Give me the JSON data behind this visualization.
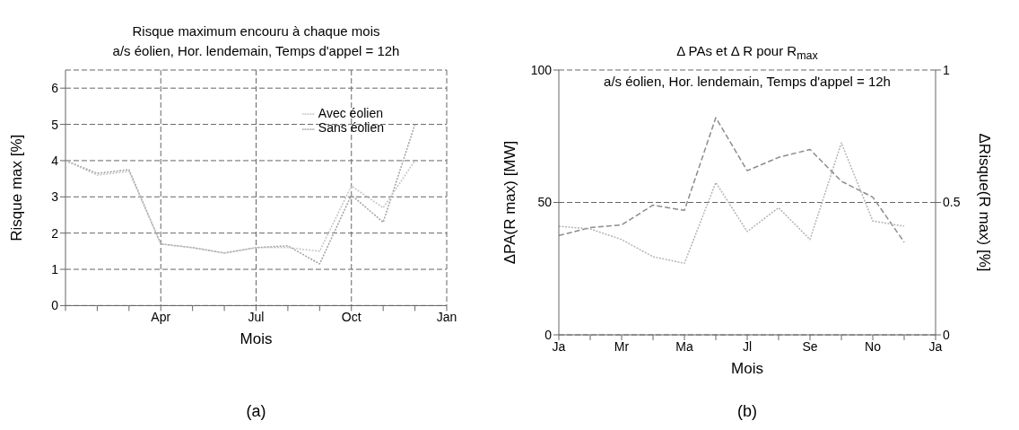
{
  "chart_data": [
    {
      "type": "line",
      "title": "Risque maximum encouru à chaque mois",
      "subtitle": "a/s éolien, Hor. lendemain, Temps d'appel = 12h",
      "xlabel": "Mois",
      "ylabel": "Risque max [%]",
      "annotations": [
        "(a)"
      ],
      "categories": [
        null,
        null,
        null,
        "Apr",
        null,
        null,
        "Jul",
        null,
        null,
        "Oct",
        null,
        null,
        "Jan"
      ],
      "series": [
        {
          "name": "Sans éolien",
          "color": "#a0a0a0",
          "line_style": "dotted",
          "values": [
            4.0,
            3.65,
            3.75,
            1.7,
            1.6,
            1.45,
            1.6,
            1.65,
            1.15,
            3.05,
            2.3,
            5.0,
            null
          ]
        },
        {
          "name": "Avec éolien",
          "color": "#c4c4c4",
          "line_style": "dotted",
          "values": [
            4.0,
            3.6,
            3.7,
            1.7,
            1.6,
            1.45,
            1.6,
            1.6,
            1.5,
            3.3,
            2.7,
            4.0,
            null
          ]
        }
      ],
      "ylim": [
        0,
        6.5
      ],
      "yticks": [
        0,
        1,
        2,
        3,
        4,
        5,
        6
      ],
      "grid": true,
      "legend": "top right"
    },
    {
      "type": "line",
      "title": "Δ PAs et Δ R pour R$_{max}$",
      "xlabel": "Mois",
      "ylabel": "ΔPA(R max) [MW]",
      "y2label": "ΔRisque(R max) [%]",
      "annotations": [
        "a/s éolien, Hor. lendemain, Temps d'appel = 12h",
        "(b)"
      ],
      "categories": [
        "Ja",
        null,
        "Mr",
        null,
        "Ma",
        null,
        "Jl",
        null,
        "Se",
        null,
        "No",
        null,
        "Ja"
      ],
      "series": [
        {
          "color": "#8c8c8c",
          "line_style": "dashed",
          "values": [
            37.5,
            40.5,
            41.5,
            49,
            47,
            82,
            62,
            67,
            70,
            58,
            52,
            35,
            null
          ]
        },
        {
          "color": "#b4b4b4",
          "line_style": "dotted",
          "axis": "y2",
          "values": [
            0.41,
            0.4,
            0.36,
            0.295,
            0.27,
            0.575,
            0.39,
            0.48,
            0.36,
            0.725,
            0.43,
            0.41,
            null
          ]
        }
      ],
      "ylim": [
        0,
        100
      ],
      "yticks": [
        0,
        50,
        100
      ],
      "y2lim": [
        0,
        1
      ],
      "y2ticks": [
        0,
        0.5,
        1
      ],
      "grid": "y",
      "legend": false
    }
  ]
}
